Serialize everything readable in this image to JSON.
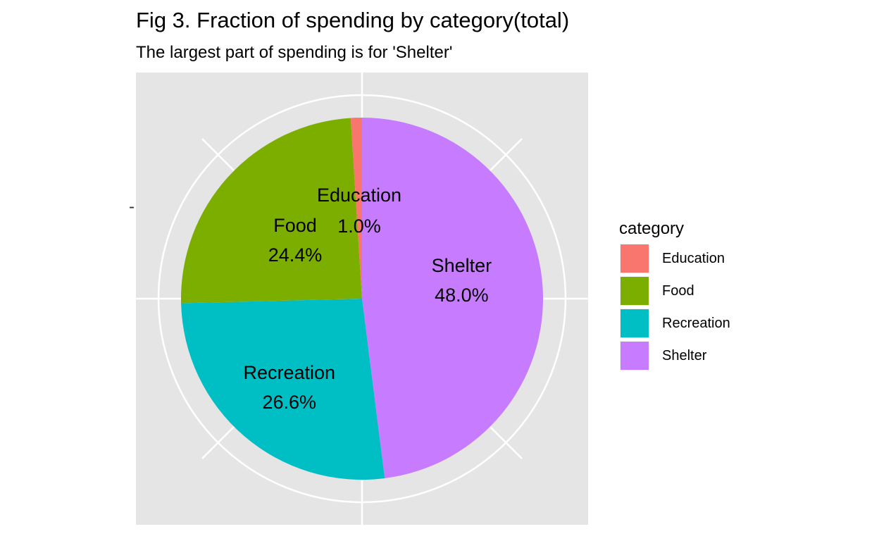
{
  "chart_data": {
    "type": "pie",
    "title": "Fig 3. Fraction of spending by category(total)",
    "subtitle": "The largest part of spending is for 'Shelter'",
    "categories": [
      "Education",
      "Food",
      "Recreation",
      "Shelter"
    ],
    "values": [
      1.0,
      24.4,
      26.6,
      48.0
    ],
    "labels": [
      "1.0%",
      "24.4%",
      "26.6%",
      "48.0%"
    ],
    "slice_order_clockwise_from_top": [
      "Shelter",
      "Recreation",
      "Food",
      "Education"
    ],
    "colors": {
      "Education": "#F8766D",
      "Food": "#7CAE00",
      "Recreation": "#00BFC4",
      "Shelter": "#C77CFF"
    },
    "legend": {
      "title": "category",
      "position": "right"
    },
    "y_axis_tick_label": "-",
    "panel_background": "#E5E5E5",
    "grid": true
  }
}
